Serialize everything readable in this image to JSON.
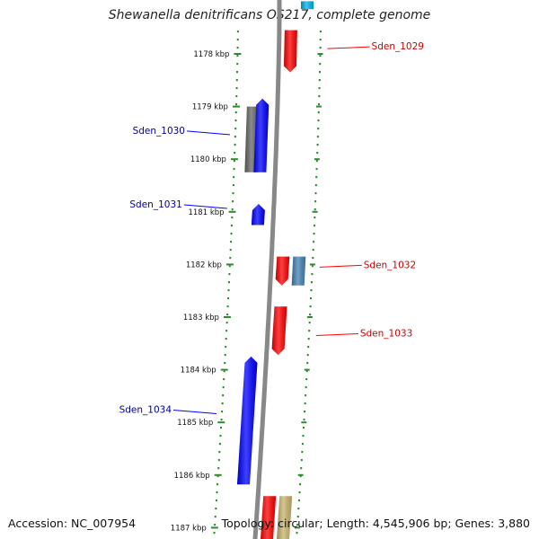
{
  "title": "Shewanella denitrificans OS217, complete genome",
  "footer": {
    "accession": "Accession: NC_007954",
    "summary": "Topology: circular; Length: 4,545,906 bp; Genes: 3,880"
  },
  "colors": {
    "forward_strand": "#ff0000",
    "reverse_strand": "#0000ff",
    "grey_feature": "#666666",
    "steel_feature": "#4682b4",
    "tan_feature": "#c8b46e",
    "cyan_feature": "#00b4e6",
    "tick_dots": "#2e8b2e",
    "backbone": "#888888"
  },
  "ticks": [
    {
      "label": "1178 kbp",
      "kbp": 1178
    },
    {
      "label": "1179 kbp",
      "kbp": 1179
    },
    {
      "label": "1180 kbp",
      "kbp": 1180
    },
    {
      "label": "1181 kbp",
      "kbp": 1181
    },
    {
      "label": "1182 kbp",
      "kbp": 1182
    },
    {
      "label": "1183 kbp",
      "kbp": 1183
    },
    {
      "label": "1184 kbp",
      "kbp": 1184
    },
    {
      "label": "1185 kbp",
      "kbp": 1185
    },
    {
      "label": "1186 kbp",
      "kbp": 1186
    },
    {
      "label": "1187 kbp",
      "kbp": 1187
    }
  ],
  "genes": [
    {
      "id": "Sden_1029",
      "label": "Sden_1029",
      "strand": "+",
      "start_kbp": 1177.55,
      "end_kbp": 1178.35,
      "color": "#ff0000",
      "side": "right"
    },
    {
      "id": "Sden_1030",
      "label": "Sden_1030",
      "strand": "-",
      "start_kbp": 1178.85,
      "end_kbp": 1180.25,
      "color": "#0000ff",
      "side": "left"
    },
    {
      "id": "Sden_1031",
      "label": "Sden_1031",
      "strand": "-",
      "start_kbp": 1180.85,
      "end_kbp": 1181.25,
      "color": "#0000ff",
      "side": "left"
    },
    {
      "id": "Sden_1032",
      "label": "Sden_1032",
      "strand": "+",
      "start_kbp": 1181.85,
      "end_kbp": 1182.4,
      "color": "#ff0000",
      "side": "right"
    },
    {
      "id": "Sden_1033",
      "label": "Sden_1033",
      "strand": "+",
      "start_kbp": 1182.8,
      "end_kbp": 1183.72,
      "color": "#ff0000",
      "side": "right"
    },
    {
      "id": "Sden_1034",
      "label": "Sden_1034",
      "strand": "-",
      "start_kbp": 1183.75,
      "end_kbp": 1186.18,
      "color": "#0000ff",
      "side": "left"
    }
  ],
  "features": [
    {
      "id": "feature-grey",
      "track": "inner-left",
      "start_kbp": 1179.0,
      "end_kbp": 1180.25,
      "color": "#666666"
    },
    {
      "id": "feature-steel",
      "track": "outer-right",
      "start_kbp": 1181.85,
      "end_kbp": 1182.4,
      "color": "#4682b4"
    },
    {
      "id": "feature-cyan",
      "track": "outer-right",
      "start_kbp": 1177.0,
      "end_kbp": 1177.15,
      "color": "#00b4e6"
    },
    {
      "id": "feature-red-bottom",
      "track": "inner-right",
      "start_kbp": 1186.4,
      "end_kbp": 1187.3,
      "color": "#ff0000"
    },
    {
      "id": "feature-tan-bottom",
      "track": "outer-right",
      "start_kbp": 1186.4,
      "end_kbp": 1187.3,
      "color": "#c8b46e"
    }
  ]
}
